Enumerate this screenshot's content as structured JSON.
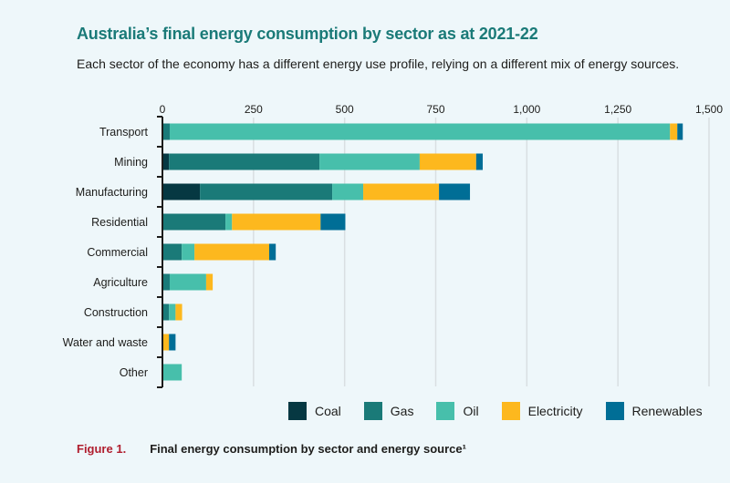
{
  "header": {
    "title": "Australia’s final energy consumption by sector as at 2021-22",
    "subtitle": "Each sector of the economy has a different energy use profile, relying on a different mix of energy sources."
  },
  "caption": {
    "figure_label": "Figure 1.",
    "text": "Final energy consumption by sector and energy source¹"
  },
  "chart_data": {
    "type": "bar",
    "orientation": "horizontal",
    "stacked": true,
    "title": "Australia’s final energy consumption by sector as at 2021-22",
    "subtitle": "Each sector of the economy has a different energy use profile, relying on a different mix of energy sources.",
    "xlabel": "",
    "ylabel": "",
    "xlim": [
      0,
      1500
    ],
    "xticks": [
      0,
      250,
      500,
      750,
      1000,
      1250,
      1500
    ],
    "xtick_labels": [
      "0",
      "250",
      "500",
      "750",
      "1,000",
      "1,250",
      "1,500"
    ],
    "axis_position": "top",
    "grid": true,
    "legend_position": "bottom-right",
    "categories": [
      "Transport",
      "Mining",
      "Manufacturing",
      "Residential",
      "Commercial",
      "Agriculture",
      "Construction",
      "Water and waste",
      "Other"
    ],
    "series": [
      {
        "name": "Coal",
        "color": "#063842",
        "values": [
          0,
          18,
          103,
          0,
          0,
          0,
          0,
          0,
          0
        ]
      },
      {
        "name": "Gas",
        "color": "#1a7a78",
        "values": [
          20,
          413,
          363,
          173,
          53,
          20,
          18,
          0,
          0
        ]
      },
      {
        "name": "Oil",
        "color": "#47bfab",
        "values": [
          1373,
          275,
          85,
          18,
          35,
          100,
          18,
          0,
          53
        ]
      },
      {
        "name": "Electricity",
        "color": "#fdb81e",
        "values": [
          20,
          155,
          208,
          243,
          205,
          18,
          18,
          18,
          0
        ]
      },
      {
        "name": "Renewables",
        "color": "#006e96",
        "values": [
          15,
          18,
          85,
          68,
          18,
          0,
          0,
          18,
          0
        ]
      }
    ]
  }
}
